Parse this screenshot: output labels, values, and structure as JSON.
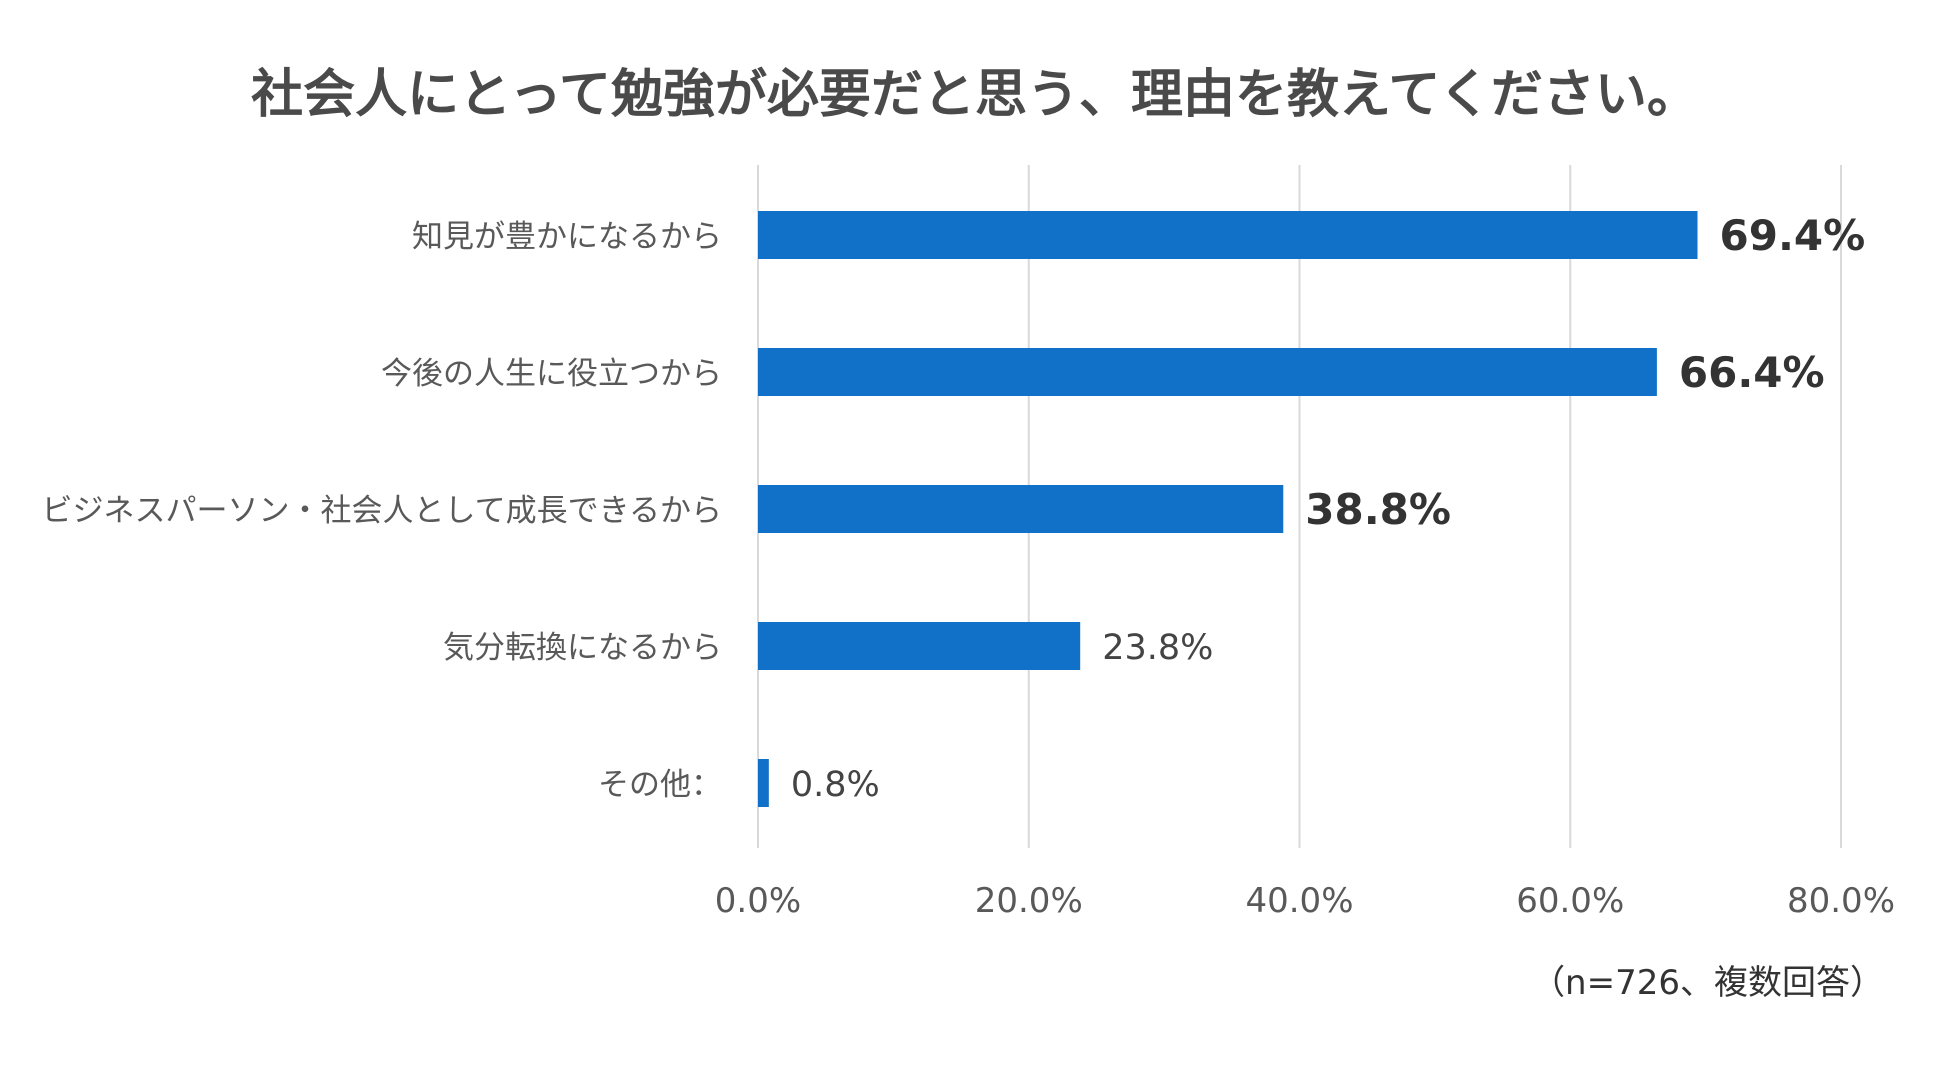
{
  "chart_data": {
    "type": "bar",
    "orientation": "horizontal",
    "title": "社会人にとって勉強が必要だと思う、理由を教えてください。",
    "categories": [
      "知見が豊かになるから",
      "今後の人生に役立つから",
      "ビジネスパーソン・社会人として成長できるから",
      "気分転換になるから",
      "その他："
    ],
    "values": [
      69.4,
      66.4,
      38.8,
      23.8,
      0.8
    ],
    "value_labels": [
      "69.4%",
      "66.4%",
      "38.8%",
      "23.8%",
      "0.8%"
    ],
    "emphasized": [
      true,
      true,
      true,
      false,
      false
    ],
    "xlim": [
      0,
      80
    ],
    "xticks": [
      0,
      20,
      40,
      60,
      80
    ],
    "xtick_labels": [
      "0.0%",
      "20.0%",
      "40.0%",
      "60.0%",
      "80.0%"
    ],
    "grid": "vertical",
    "legend": "none",
    "bar_color": "#1170c8",
    "grid_color": "#d9d9d9",
    "note": "（n=726、複数回答）"
  }
}
